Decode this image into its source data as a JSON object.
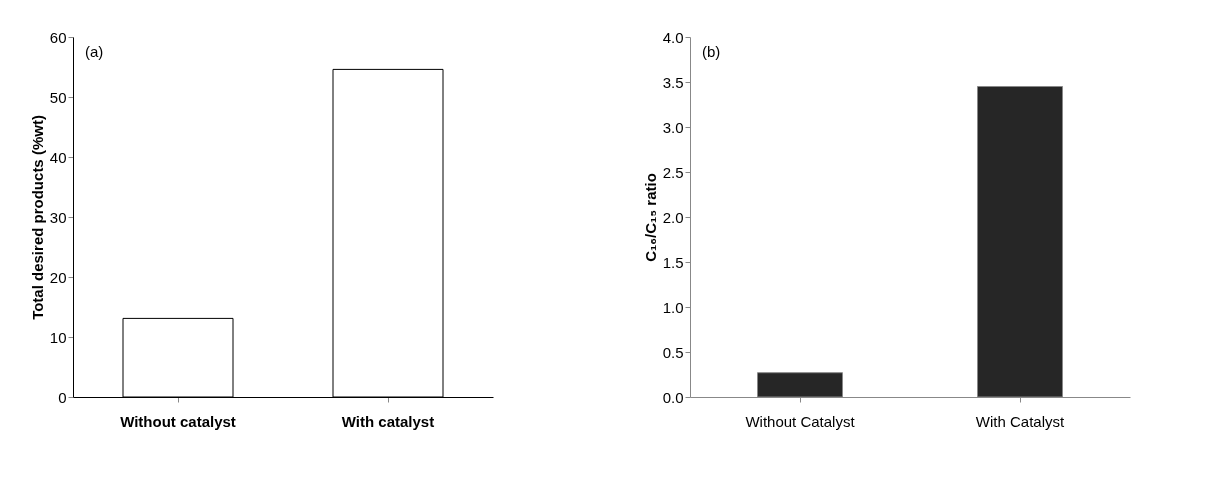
{
  "chart_data": [
    {
      "type": "bar",
      "ylabel": "Total desired products (%wt)",
      "categories": [
        "Without catalyst",
        "With catalyst"
      ],
      "values": [
        13.1,
        54.6
      ],
      "color": "#ffffff",
      "ylim": [
        0,
        60
      ],
      "yticks": [
        0,
        10,
        20,
        30,
        40,
        50,
        60
      ],
      "annotations": [
        "(a)"
      ],
      "grid": false
    },
    {
      "type": "bar",
      "ylabel": "C₁₆/C₁₅ ratio",
      "categories": [
        "Without Catalyst",
        "With Catalyst"
      ],
      "values": [
        0.27,
        3.45
      ],
      "color": "#262626",
      "ylim": [
        0,
        4
      ],
      "yticks": [
        {
          "value": 0,
          "label": "0.0"
        },
        {
          "value": 0.5,
          "label": "0.5"
        },
        {
          "value": 1,
          "label": "1.0"
        },
        {
          "value": 1.5,
          "label": "1.5"
        },
        {
          "value": 2,
          "label": "2.0"
        },
        {
          "value": 2.5,
          "label": "2.5"
        },
        {
          "value": 3,
          "label": "3.0"
        },
        {
          "value": 3.5,
          "label": "3.5"
        },
        {
          "value": 4,
          "label": "4.0"
        }
      ],
      "annotations": [
        "(b)"
      ],
      "grid": false
    }
  ]
}
